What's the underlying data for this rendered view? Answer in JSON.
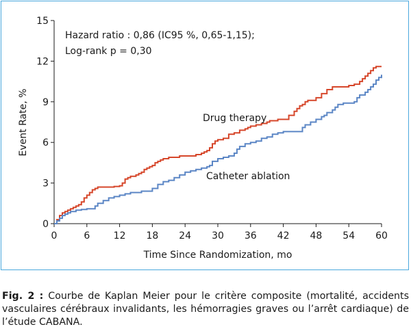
{
  "caption": {
    "label": "Fig. 2 :",
    "text": "Courbe de Kaplan Meier pour le critère composite (mortalité, accidents vasculaires cérébraux invalidants, les hémorragies graves ou l’arrêt cardiaque) de l’étude CABANA."
  },
  "chart_data": {
    "type": "line",
    "title": "",
    "xlabel": "Time Since Randomization, mo",
    "ylabel": "Event Rate, %",
    "xlim": [
      0,
      60
    ],
    "ylim": [
      0,
      15
    ],
    "xticks": [
      0,
      6,
      12,
      18,
      24,
      30,
      36,
      42,
      48,
      54,
      60
    ],
    "yticks": [
      0,
      3,
      6,
      9,
      12,
      15
    ],
    "grid": false,
    "legend": "none",
    "annotations": [
      "Hazard ratio : 0,86 (IC95 %, 0,65-1,15);",
      "Log-rank p = 0,30"
    ],
    "series": [
      {
        "name": "Drug therapy",
        "color": "#d6462a",
        "x": [
          0,
          0.5,
          1,
          1.5,
          2,
          2.5,
          3,
          3.5,
          4,
          4.5,
          5,
          5.5,
          6,
          6.5,
          7,
          7.5,
          8,
          8.5,
          9,
          10,
          11,
          12,
          12.5,
          13,
          13.5,
          14,
          14.5,
          15,
          15.5,
          16,
          16.5,
          17,
          17.5,
          18,
          18.5,
          19,
          19.5,
          20,
          21,
          22,
          23,
          24,
          25,
          26,
          27,
          27.5,
          28,
          28.5,
          29,
          29.5,
          30,
          31,
          32,
          33,
          34,
          35,
          35.5,
          36,
          37,
          38,
          39,
          39.5,
          40,
          41,
          42,
          43,
          44,
          44.5,
          45,
          45.5,
          46,
          46.5,
          47,
          48,
          49,
          50,
          51,
          51.5,
          52,
          53,
          54,
          55,
          56,
          56.5,
          57,
          57.5,
          58,
          58.5,
          59,
          60
        ],
        "y": [
          0,
          0.3,
          0.6,
          0.8,
          0.9,
          1.0,
          1.1,
          1.2,
          1.3,
          1.4,
          1.6,
          1.9,
          2.1,
          2.3,
          2.5,
          2.6,
          2.7,
          2.7,
          2.7,
          2.7,
          2.75,
          2.8,
          3.0,
          3.3,
          3.4,
          3.5,
          3.5,
          3.6,
          3.7,
          3.8,
          4.0,
          4.1,
          4.2,
          4.3,
          4.5,
          4.6,
          4.7,
          4.8,
          4.9,
          4.9,
          5.0,
          5.0,
          5.0,
          5.1,
          5.2,
          5.3,
          5.4,
          5.6,
          5.9,
          6.1,
          6.2,
          6.3,
          6.6,
          6.7,
          6.9,
          7.0,
          7.1,
          7.2,
          7.3,
          7.4,
          7.5,
          7.6,
          7.6,
          7.7,
          7.7,
          8.0,
          8.3,
          8.5,
          8.7,
          8.8,
          9.0,
          9.1,
          9.1,
          9.3,
          9.6,
          9.9,
          10.1,
          10.1,
          10.1,
          10.1,
          10.2,
          10.3,
          10.5,
          10.7,
          10.9,
          11.1,
          11.3,
          11.5,
          11.6,
          11.6
        ]
      },
      {
        "name": "Catheter ablation",
        "color": "#5b86c5",
        "x": [
          0,
          0.5,
          1,
          1.5,
          2,
          2.5,
          3,
          4,
          5,
          6,
          7,
          7.5,
          8,
          9,
          10,
          11,
          12,
          13,
          14,
          15,
          16,
          17,
          18,
          19,
          20,
          21,
          22,
          23,
          24,
          25,
          26,
          27,
          28,
          28.5,
          29,
          30,
          31,
          32,
          33,
          33.5,
          34,
          35,
          36,
          37,
          38,
          39,
          40,
          41,
          42,
          43,
          44,
          45,
          45.5,
          46,
          47,
          48,
          49,
          49.5,
          50,
          51,
          51.5,
          52,
          53,
          54,
          55,
          55.5,
          56,
          57,
          57.5,
          58,
          58.5,
          59,
          59.5,
          60
        ],
        "y": [
          0,
          0.2,
          0.4,
          0.6,
          0.7,
          0.8,
          0.9,
          1.0,
          1.05,
          1.1,
          1.1,
          1.3,
          1.5,
          1.7,
          1.9,
          2.0,
          2.1,
          2.2,
          2.3,
          2.3,
          2.4,
          2.4,
          2.6,
          2.9,
          3.1,
          3.2,
          3.4,
          3.6,
          3.8,
          3.9,
          4.0,
          4.1,
          4.2,
          4.3,
          4.6,
          4.8,
          4.9,
          5.0,
          5.2,
          5.5,
          5.7,
          5.9,
          6.0,
          6.1,
          6.3,
          6.4,
          6.6,
          6.7,
          6.8,
          6.8,
          6.8,
          6.8,
          7.1,
          7.3,
          7.5,
          7.7,
          7.9,
          8.0,
          8.2,
          8.4,
          8.6,
          8.8,
          8.9,
          8.9,
          9.0,
          9.3,
          9.5,
          9.7,
          9.9,
          10.1,
          10.3,
          10.6,
          10.8,
          11.0
        ]
      }
    ]
  }
}
